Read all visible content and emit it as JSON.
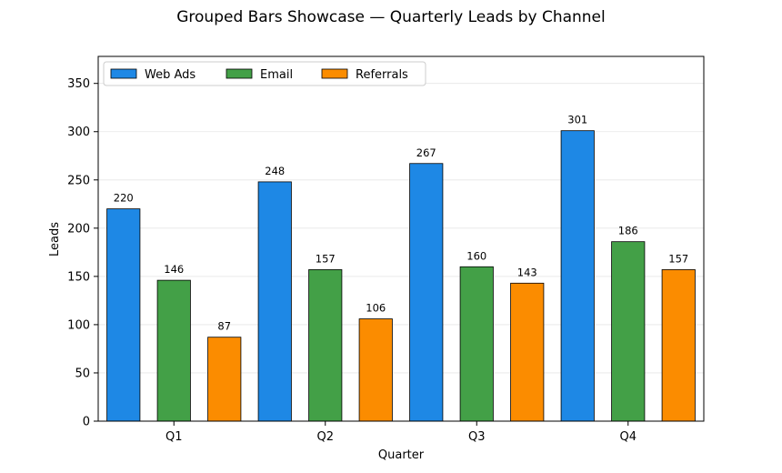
{
  "chart_data": {
    "type": "bar",
    "title": "Grouped Bars Showcase — Quarterly Leads by Channel",
    "xlabel": "Quarter",
    "ylabel": "Leads",
    "categories": [
      "Q1",
      "Q2",
      "Q3",
      "Q4"
    ],
    "ylim": [
      0,
      378
    ],
    "yticks": [
      0,
      50,
      100,
      150,
      200,
      250,
      300,
      350
    ],
    "grid": "y",
    "legend_position": "top-left",
    "series": [
      {
        "name": "Web Ads",
        "color": "#1e88e5",
        "values": [
          220,
          248,
          267,
          301
        ]
      },
      {
        "name": "Email",
        "color": "#43a047",
        "values": [
          146,
          157,
          160,
          186
        ]
      },
      {
        "name": "Referrals",
        "color": "#fb8c00",
        "values": [
          87,
          106,
          143,
          157
        ]
      }
    ]
  }
}
